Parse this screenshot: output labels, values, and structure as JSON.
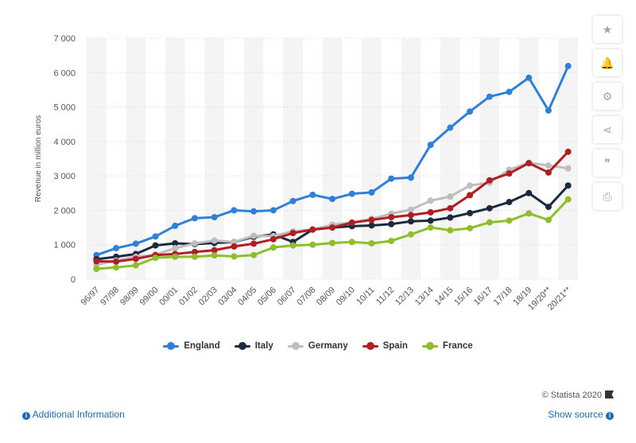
{
  "sidebar": {
    "buttons": [
      {
        "name": "star-icon",
        "glyph": "★"
      },
      {
        "name": "bell-icon",
        "glyph": "🔔"
      },
      {
        "name": "gear-icon",
        "glyph": "⚙"
      },
      {
        "name": "share-icon",
        "glyph": "⋖"
      },
      {
        "name": "quote-icon",
        "glyph": "❞"
      },
      {
        "name": "print-icon",
        "glyph": "⎙"
      }
    ]
  },
  "footer": {
    "copyright": "© Statista 2020",
    "additional_info": "Additional Information",
    "show_source": "Show source"
  },
  "chart_data": {
    "type": "line",
    "title": "",
    "xlabel": "",
    "ylabel": "Revenue in million euros",
    "ylim": [
      0,
      7000
    ],
    "yticks": [
      0,
      1000,
      2000,
      3000,
      4000,
      5000,
      6000,
      7000
    ],
    "ytick_labels": [
      "0",
      "1 000",
      "2 000",
      "3 000",
      "4 000",
      "5 000",
      "6 000",
      "7 000"
    ],
    "grid": true,
    "legend_position": "bottom",
    "categories": [
      "96/97",
      "97/98",
      "98/99",
      "99/00",
      "00/01",
      "01/02",
      "02/03",
      "03/04",
      "04/05",
      "05/06",
      "06/07",
      "07/08",
      "08/09",
      "09/10",
      "10/11",
      "11/12",
      "12/13",
      "13/14",
      "14/15",
      "15/16",
      "16/17",
      "17/18",
      "18/19",
      "19/20**",
      "20/21**"
    ],
    "series": [
      {
        "name": "England",
        "color": "#2f80d8",
        "values": [
          700,
          900,
          1030,
          1240,
          1550,
          1770,
          1800,
          2000,
          1970,
          2000,
          2270,
          2450,
          2330,
          2480,
          2520,
          2920,
          2950,
          3900,
          4400,
          4870,
          5300,
          5440,
          5850,
          4900,
          6190
        ]
      },
      {
        "name": "Italy",
        "color": "#1b2b3d",
        "values": [
          580,
          650,
          730,
          980,
          1040,
          1020,
          1050,
          1080,
          1230,
          1300,
          1080,
          1440,
          1500,
          1540,
          1560,
          1600,
          1680,
          1700,
          1790,
          1920,
          2060,
          2240,
          2500,
          2100,
          2720
        ]
      },
      {
        "name": "Germany",
        "color": "#bebebe",
        "values": [
          420,
          540,
          650,
          710,
          900,
          1040,
          1120,
          1080,
          1260,
          1250,
          1390,
          1440,
          1580,
          1650,
          1750,
          1900,
          2020,
          2280,
          2400,
          2720,
          2800,
          3180,
          3380,
          3300,
          3220
        ]
      },
      {
        "name": "Spain",
        "color": "#b01e23",
        "values": [
          520,
          510,
          590,
          700,
          730,
          790,
          840,
          950,
          1030,
          1160,
          1340,
          1440,
          1500,
          1640,
          1720,
          1800,
          1860,
          1940,
          2060,
          2440,
          2870,
          3070,
          3370,
          3100,
          3700
        ]
      },
      {
        "name": "France",
        "color": "#8cbf2b",
        "values": [
          300,
          340,
          400,
          620,
          650,
          650,
          690,
          660,
          700,
          920,
          980,
          1000,
          1050,
          1080,
          1040,
          1110,
          1300,
          1500,
          1420,
          1480,
          1650,
          1700,
          1910,
          1720,
          2320
        ]
      }
    ]
  }
}
